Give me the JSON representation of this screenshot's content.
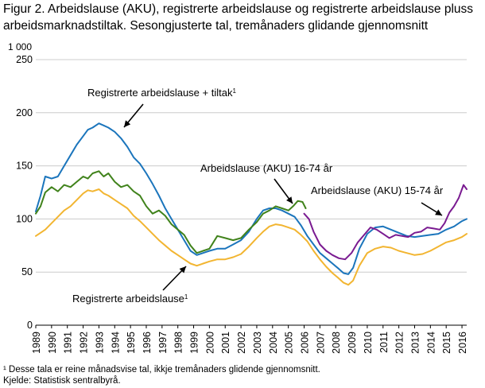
{
  "figure": {
    "title": "Figur 2. Arbeidslause (AKU), registrerte arbeidslause og registrerte arbeidslause pluss arbeidsmarknadstiltak. Sesongjusterte tal, tremånaders glidande gjennomsnitt",
    "unit_label": "1 000",
    "footnote": "¹ Desse tala er reine månadsvise tal, ikkje tremånaders glidende gjennomsnitt.",
    "source": "Kjelde: Statistisk sentralbyrå."
  },
  "chart_data": {
    "type": "line",
    "ylim": [
      0,
      250
    ],
    "yticks": [
      0,
      50,
      100,
      150,
      200,
      250
    ],
    "xlim": [
      1989,
      2016.3
    ],
    "xticks": [
      "1989",
      "1990",
      "1991",
      "1992",
      "1993",
      "1994",
      "1995",
      "1996",
      "1997",
      "1998",
      "1999",
      "2000",
      "2001",
      "2002",
      "2003",
      "2004",
      "2005",
      "2006",
      "2007",
      "2008",
      "2009",
      "2010",
      "2011",
      "2012",
      "2013",
      "2014",
      "2015",
      "2016"
    ],
    "grid": "horizontal",
    "colors": {
      "blue": "#1b75bc",
      "green": "#41831c",
      "yellow": "#f2b531",
      "purple": "#7a1b91",
      "grid": "#cccccc"
    },
    "annotations": [
      {
        "text": "Registrerte arbeidslause + tiltak",
        "sup": "1",
        "series": "blue"
      },
      {
        "text": "Arbeidslause (AKU) 16-74 år",
        "series": "green"
      },
      {
        "text": "Arbeidslause (AKU) 15-74 år",
        "series": "purple"
      },
      {
        "text": "Registrerte arbeidslause",
        "sup": "1",
        "series": "yellow"
      }
    ],
    "series": [
      {
        "key": "blue",
        "color": "#1b75bc",
        "x": [
          1989.0,
          1989.3,
          1989.6,
          1990.0,
          1990.4,
          1990.8,
          1991.2,
          1991.6,
          1992.0,
          1992.3,
          1992.6,
          1993.0,
          1993.3,
          1993.6,
          1994.0,
          1994.4,
          1994.8,
          1995.2,
          1995.6,
          1996.0,
          1996.4,
          1996.8,
          1997.2,
          1997.6,
          1998.0,
          1998.4,
          1998.8,
          1999.2,
          1999.6,
          2000.0,
          2000.5,
          2001.0,
          2001.5,
          2002.0,
          2002.5,
          2003.0,
          2003.4,
          2003.8,
          2004.2,
          2004.6,
          2005.0,
          2005.4,
          2005.8,
          2006.2,
          2006.6,
          2007.0,
          2007.4,
          2007.8,
          2008.2,
          2008.5,
          2008.8,
          2009.1,
          2009.5,
          2010.0,
          2010.5,
          2011.0,
          2011.5,
          2012.0,
          2012.5,
          2013.0,
          2013.5,
          2014.0,
          2014.5,
          2015.0,
          2015.5,
          2016.0,
          2016.3
        ],
        "y": [
          107,
          122,
          140,
          138,
          140,
          150,
          160,
          170,
          178,
          184,
          186,
          190,
          188,
          186,
          182,
          176,
          168,
          158,
          152,
          143,
          133,
          122,
          110,
          100,
          90,
          80,
          70,
          66,
          68,
          70,
          72,
          72,
          76,
          80,
          88,
          100,
          108,
          110,
          110,
          108,
          105,
          102,
          94,
          84,
          76,
          68,
          63,
          58,
          53,
          49,
          48,
          54,
          72,
          86,
          92,
          93,
          90,
          87,
          84,
          83,
          84,
          85,
          86,
          90,
          93,
          98,
          100
        ]
      },
      {
        "key": "green",
        "color": "#41831c",
        "x": [
          1989.0,
          1989.3,
          1989.6,
          1990.0,
          1990.4,
          1990.8,
          1991.2,
          1991.6,
          1992.0,
          1992.3,
          1992.6,
          1993.0,
          1993.3,
          1993.6,
          1994.0,
          1994.4,
          1994.8,
          1995.2,
          1995.6,
          1996.0,
          1996.4,
          1996.8,
          1997.2,
          1997.6,
          1998.0,
          1998.4,
          1998.8,
          1999.2,
          1999.6,
          2000.0,
          2000.5,
          2001.0,
          2001.5,
          2002.0,
          2002.5,
          2003.0,
          2003.4,
          2003.8,
          2004.2,
          2004.6,
          2005.0,
          2005.3,
          2005.6,
          2005.9,
          2006.1
        ],
        "y": [
          105,
          112,
          125,
          130,
          126,
          132,
          130,
          135,
          140,
          138,
          143,
          145,
          140,
          143,
          135,
          130,
          132,
          126,
          122,
          112,
          105,
          108,
          103,
          95,
          90,
          85,
          75,
          68,
          70,
          72,
          84,
          82,
          80,
          82,
          90,
          97,
          105,
          108,
          112,
          110,
          108,
          112,
          117,
          116,
          110
        ]
      },
      {
        "key": "yellow",
        "color": "#f2b531",
        "x": [
          1989.0,
          1989.3,
          1989.6,
          1990.0,
          1990.4,
          1990.8,
          1991.2,
          1991.6,
          1992.0,
          1992.3,
          1992.6,
          1993.0,
          1993.3,
          1993.6,
          1994.0,
          1994.4,
          1994.8,
          1995.2,
          1995.6,
          1996.0,
          1996.4,
          1996.8,
          1997.2,
          1997.6,
          1998.0,
          1998.4,
          1998.8,
          1999.2,
          1999.6,
          2000.0,
          2000.5,
          2001.0,
          2001.5,
          2002.0,
          2002.5,
          2003.0,
          2003.4,
          2003.8,
          2004.2,
          2004.6,
          2005.0,
          2005.4,
          2005.8,
          2006.2,
          2006.6,
          2007.0,
          2007.4,
          2007.8,
          2008.2,
          2008.5,
          2008.8,
          2009.1,
          2009.5,
          2010.0,
          2010.5,
          2011.0,
          2011.5,
          2012.0,
          2012.5,
          2013.0,
          2013.5,
          2014.0,
          2014.5,
          2015.0,
          2015.5,
          2016.0,
          2016.3
        ],
        "y": [
          84,
          87,
          90,
          96,
          102,
          108,
          112,
          118,
          124,
          127,
          126,
          128,
          124,
          122,
          118,
          114,
          110,
          103,
          98,
          92,
          86,
          80,
          75,
          70,
          66,
          62,
          58,
          56,
          58,
          60,
          62,
          62,
          64,
          67,
          74,
          82,
          88,
          93,
          95,
          94,
          92,
          90,
          85,
          79,
          70,
          62,
          55,
          49,
          44,
          40,
          38,
          42,
          56,
          68,
          72,
          74,
          73,
          70,
          68,
          66,
          67,
          70,
          74,
          78,
          80,
          83,
          86
        ]
      },
      {
        "key": "purple",
        "color": "#7a1b91",
        "x": [
          2006.0,
          2006.3,
          2006.6,
          2007.0,
          2007.4,
          2007.8,
          2008.2,
          2008.6,
          2009.0,
          2009.4,
          2009.8,
          2010.2,
          2010.6,
          2011.0,
          2011.4,
          2011.8,
          2012.2,
          2012.6,
          2013.0,
          2013.4,
          2013.8,
          2014.2,
          2014.6,
          2014.9,
          2015.2,
          2015.5,
          2015.8,
          2016.0,
          2016.1,
          2016.3
        ],
        "y": [
          105,
          100,
          88,
          76,
          70,
          66,
          63,
          62,
          68,
          78,
          85,
          92,
          90,
          86,
          82,
          85,
          84,
          83,
          87,
          88,
          92,
          91,
          90,
          96,
          106,
          112,
          120,
          128,
          132,
          128
        ]
      }
    ]
  }
}
